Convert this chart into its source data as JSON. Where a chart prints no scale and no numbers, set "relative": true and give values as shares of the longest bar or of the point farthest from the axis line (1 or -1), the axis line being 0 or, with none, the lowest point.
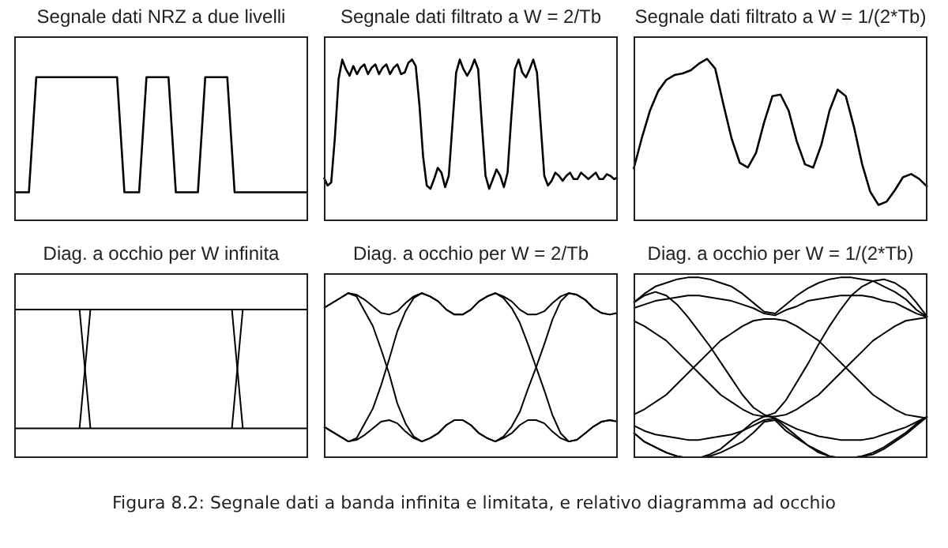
{
  "chart_data": [
    {
      "type": "line",
      "title": "Segnale dati NRZ a due livelli",
      "relative": true,
      "categories": [
        null,
        null,
        null,
        null,
        null,
        null,
        null,
        null,
        null,
        null,
        null,
        null,
        null,
        null,
        null,
        null,
        null,
        null,
        null,
        null,
        null,
        null,
        null,
        null,
        null,
        null,
        null,
        null,
        null,
        null,
        null,
        null,
        null,
        null,
        null,
        null,
        null,
        null,
        null,
        null,
        null
      ],
      "series": [
        {
          "color": "#000000",
          "values": [
            0.2,
            0.2,
            0.2,
            1,
            1,
            1,
            1,
            1,
            1,
            1,
            1,
            1,
            1,
            1,
            1,
            0.2,
            0.2,
            0.2,
            1,
            1,
            1,
            1,
            0.2,
            0.2,
            0.2,
            0.2,
            1,
            1,
            1,
            1,
            0.2,
            0.2,
            0.2,
            0.2,
            0.2,
            0.2,
            0.2,
            0.2,
            0.2,
            0.2,
            0.2
          ]
        }
      ]
    },
    {
      "type": "line",
      "title": "Segnale dati filtrato a W = 2/Tb",
      "relative": true,
      "categories": [
        null,
        null,
        null,
        null,
        null,
        null,
        null,
        null,
        null,
        null,
        null,
        null,
        null,
        null,
        null,
        null,
        null,
        null,
        null,
        null,
        null,
        null,
        null,
        null,
        null,
        null,
        null,
        null,
        null,
        null,
        null,
        null,
        null,
        null,
        null,
        null,
        null,
        null,
        null,
        null,
        null,
        null,
        null,
        null,
        null,
        null,
        null,
        null,
        null,
        null,
        null,
        null,
        null,
        null,
        null,
        null,
        null,
        null,
        null,
        null,
        null,
        null,
        null,
        null,
        null,
        null,
        null,
        null,
        null,
        null,
        null,
        null,
        null,
        null,
        null,
        null,
        null,
        null,
        null,
        null,
        null
      ],
      "series": [
        {
          "color": "#000000",
          "values": [
            0.27,
            0.22,
            0.24,
            0.52,
            0.88,
            1,
            0.94,
            0.9,
            0.96,
            0.91,
            0.95,
            0.97,
            0.91,
            0.95,
            0.97,
            0.91,
            0.95,
            0.97,
            0.91,
            0.95,
            0.97,
            0.91,
            0.92,
            0.98,
            1,
            0.96,
            0.72,
            0.4,
            0.22,
            0.2,
            0.26,
            0.33,
            0.3,
            0.21,
            0.28,
            0.6,
            0.92,
            1,
            0.94,
            0.9,
            0.94,
            1,
            0.94,
            0.6,
            0.28,
            0.2,
            0.26,
            0.32,
            0.28,
            0.21,
            0.3,
            0.64,
            0.94,
            1,
            0.92,
            0.89,
            0.94,
            1,
            0.92,
            0.6,
            0.28,
            0.22,
            0.25,
            0.3,
            0.28,
            0.25,
            0.28,
            0.3,
            0.26,
            0.26,
            0.3,
            0.28,
            0.26,
            0.28,
            0.3,
            0.26,
            0.26,
            0.29,
            0.28,
            0.26,
            0.27
          ]
        }
      ]
    },
    {
      "type": "line",
      "title": "Segnale dati filtrato a W = 1/(2*Tb)",
      "relative": true,
      "categories": [
        null,
        null,
        null,
        null,
        null,
        null,
        null,
        null,
        null,
        null,
        null,
        null,
        null,
        null,
        null,
        null,
        null,
        null,
        null,
        null,
        null,
        null,
        null,
        null,
        null,
        null,
        null,
        null,
        null,
        null,
        null,
        null,
        null,
        null,
        null,
        null,
        null
      ],
      "series": [
        {
          "color": "#000000",
          "values": [
            0.32,
            0.51,
            0.68,
            0.8,
            0.87,
            0.9,
            0.91,
            0.93,
            0.97,
            1,
            0.94,
            0.72,
            0.51,
            0.36,
            0.33,
            0.42,
            0.61,
            0.77,
            0.78,
            0.68,
            0.49,
            0.35,
            0.33,
            0.47,
            0.68,
            0.81,
            0.77,
            0.58,
            0.35,
            0.18,
            0.1,
            0.12,
            0.19,
            0.27,
            0.29,
            0.26,
            0.21
          ]
        }
      ]
    },
    {
      "type": "line",
      "title": "Diag. a occhio per W infinita",
      "relative": true,
      "categories": [
        null,
        null,
        null,
        null,
        null,
        null,
        null,
        null,
        null,
        null,
        null,
        null,
        null,
        null,
        null,
        null,
        null,
        null,
        null,
        null,
        null,
        null,
        null,
        null,
        null,
        null,
        null,
        null
      ],
      "series": [
        {
          "color": "#000000",
          "values": [
            1,
            1,
            1,
            1,
            1,
            1,
            1,
            1,
            1,
            1,
            1,
            1,
            1,
            1,
            1,
            1,
            1,
            1,
            1,
            1,
            1,
            1,
            1,
            1,
            1,
            1,
            1,
            1
          ]
        },
        {
          "color": "#000000",
          "values": [
            0.2,
            0.2,
            0.2,
            0.2,
            0.2,
            0.2,
            0.2,
            0.2,
            0.2,
            0.2,
            0.2,
            0.2,
            0.2,
            0.2,
            0.2,
            0.2,
            0.2,
            0.2,
            0.2,
            0.2,
            0.2,
            0.2,
            0.2,
            0.2,
            0.2,
            0.2,
            0.2,
            0.2
          ]
        },
        {
          "color": "#000000",
          "values": [
            null,
            null,
            null,
            null,
            null,
            null,
            0.2,
            1,
            null,
            null,
            null,
            null,
            null,
            null,
            null,
            null,
            null,
            null,
            null,
            null,
            null,
            null,
            null,
            null,
            null,
            null,
            null,
            null
          ]
        },
        {
          "color": "#000000",
          "values": [
            null,
            null,
            null,
            null,
            null,
            null,
            1,
            0.2,
            null,
            null,
            null,
            null,
            null,
            null,
            null,
            null,
            null,
            null,
            null,
            null,
            null,
            null,
            null,
            null,
            null,
            null,
            null,
            null
          ]
        },
        {
          "color": "#000000",
          "values": [
            null,
            null,
            null,
            null,
            null,
            null,
            null,
            null,
            null,
            null,
            null,
            null,
            null,
            null,
            null,
            null,
            null,
            null,
            null,
            null,
            1,
            0.2,
            null,
            null,
            null,
            null,
            null,
            null
          ]
        },
        {
          "color": "#000000",
          "values": [
            null,
            null,
            null,
            null,
            null,
            null,
            null,
            null,
            null,
            null,
            null,
            null,
            null,
            null,
            null,
            null,
            null,
            null,
            null,
            null,
            0.2,
            1,
            null,
            null,
            null,
            null,
            null,
            null
          ]
        }
      ]
    },
    {
      "type": "line",
      "title": "Diag. a occhio per W = 2/Tb",
      "relative": true,
      "categories": [
        null,
        null,
        null,
        null,
        null,
        null,
        null,
        null,
        null,
        null,
        null,
        null,
        null,
        null,
        null,
        null,
        null,
        null,
        null,
        null,
        null,
        null,
        null,
        null,
        null,
        null,
        null,
        null,
        null,
        null,
        null,
        null,
        null,
        null,
        null,
        null,
        null
      ],
      "series": [
        {
          "color": "#000000",
          "values": [
            0.91,
            0.94,
            0.97,
            1,
            0.99,
            0.96,
            0.92,
            0.88,
            0.87,
            0.89,
            0.94,
            0.98,
            1,
            0.98,
            0.95,
            0.9,
            0.87,
            0.87,
            0.9,
            0.95,
            0.98,
            1,
            0.98,
            0.95,
            0.9,
            0.87,
            0.87,
            0.89,
            0.94,
            0.98,
            1,
            0.99,
            0.96,
            0.91,
            0.88,
            0.87,
            0.88
          ]
        },
        {
          "color": "#000000",
          "values": [
            0.19,
            0.16,
            0.13,
            0.1,
            0.11,
            0.14,
            0.18,
            0.22,
            0.23,
            0.21,
            0.16,
            0.12,
            0.1,
            0.12,
            0.15,
            0.2,
            0.23,
            0.23,
            0.2,
            0.15,
            0.12,
            0.1,
            0.12,
            0.15,
            0.2,
            0.23,
            0.23,
            0.21,
            0.16,
            0.12,
            0.1,
            0.11,
            0.15,
            0.19,
            0.22,
            0.23,
            0.22
          ]
        },
        {
          "color": "#000000",
          "values": [
            0.91,
            0.94,
            0.97,
            1,
            0.98,
            0.89,
            0.8,
            0.66,
            0.51,
            0.33,
            0.21,
            0.13,
            0.1,
            0.12,
            0.15,
            0.2,
            0.23,
            0.23,
            0.2,
            0.15,
            0.12,
            0.1,
            0.13,
            0.19,
            0.28,
            0.42,
            0.55,
            0.69,
            0.84,
            0.95,
            1,
            0.99,
            0.96,
            0.91,
            0.88,
            0.87,
            0.88
          ]
        },
        {
          "color": "#000000",
          "values": [
            0.19,
            0.16,
            0.13,
            0.1,
            0.12,
            0.21,
            0.3,
            0.44,
            0.6,
            0.77,
            0.89,
            0.97,
            1,
            0.98,
            0.95,
            0.9,
            0.87,
            0.87,
            0.9,
            0.95,
            0.98,
            1,
            0.97,
            0.91,
            0.82,
            0.69,
            0.55,
            0.41,
            0.26,
            0.15,
            0.1,
            0.11,
            0.15,
            0.19,
            0.22,
            0.23,
            0.22
          ]
        }
      ]
    },
    {
      "type": "line",
      "title": "Diag. a occhio per W = 1/(2*Tb)",
      "relative": true,
      "categories": [
        null,
        null,
        null,
        null,
        null,
        null,
        null,
        null,
        null,
        null,
        null,
        null,
        null,
        null,
        null,
        null,
        null,
        null,
        null,
        null,
        null,
        null,
        null,
        null,
        null,
        null,
        null,
        null
      ],
      "annotations": [
        "Figura 8.2: Segnale dati a banda infinita e limitata, e relativo diagramma ad occhio"
      ],
      "series": [
        {
          "color": "#000000",
          "values": [
            0.86,
            0.91,
            0.95,
            0.97,
            0.99,
            1,
            1,
            0.99,
            0.97,
            0.95,
            0.91,
            0.86,
            0.81,
            0.8,
            0.85,
            0.9,
            0.94,
            0.97,
            0.99,
            1,
            1,
            0.99,
            0.98,
            0.95,
            0.92,
            0.88,
            0.82,
            0.78
          ]
        },
        {
          "color": "#000000",
          "values": [
            0.83,
            0.85,
            0.87,
            0.88,
            0.89,
            0.9,
            0.9,
            0.89,
            0.88,
            0.87,
            0.85,
            0.83,
            0.8,
            0.79,
            0.82,
            0.84,
            0.87,
            0.88,
            0.89,
            0.9,
            0.9,
            0.9,
            0.89,
            0.87,
            0.86,
            0.83,
            0.8,
            0.78
          ]
        },
        {
          "color": "#000000",
          "values": [
            0.76,
            0.73,
            0.69,
            0.65,
            0.59,
            0.53,
            0.47,
            0.41,
            0.35,
            0.31,
            0.27,
            0.24,
            0.23,
            0.23,
            0.24,
            0.27,
            0.31,
            0.35,
            0.41,
            0.47,
            0.53,
            0.59,
            0.65,
            0.69,
            0.73,
            0.76,
            0.77,
            0.78
          ]
        },
        {
          "color": "#000000",
          "values": [
            0.24,
            0.27,
            0.31,
            0.35,
            0.41,
            0.47,
            0.53,
            0.59,
            0.65,
            0.69,
            0.73,
            0.76,
            0.77,
            0.77,
            0.76,
            0.73,
            0.69,
            0.65,
            0.59,
            0.53,
            0.47,
            0.41,
            0.35,
            0.31,
            0.27,
            0.24,
            0.23,
            0.22
          ]
        },
        {
          "color": "#000000",
          "values": [
            0.14,
            0.09,
            0.06,
            0.03,
            0.01,
            0,
            0,
            0.01,
            0.03,
            0.06,
            0.09,
            0.14,
            0.2,
            0.21,
            0.15,
            0.11,
            0.07,
            0.04,
            0.01,
            0,
            0,
            0.01,
            0.02,
            0.05,
            0.09,
            0.13,
            0.18,
            0.23
          ]
        },
        {
          "color": "#000000",
          "values": [
            0.18,
            0.15,
            0.13,
            0.12,
            0.11,
            0.1,
            0.1,
            0.11,
            0.12,
            0.13,
            0.15,
            0.18,
            0.21,
            0.22,
            0.19,
            0.16,
            0.14,
            0.12,
            0.11,
            0.1,
            0.1,
            0.1,
            0.11,
            0.13,
            0.15,
            0.17,
            0.2,
            0.23
          ]
        },
        {
          "color": "#000000",
          "values": [
            0.86,
            0.9,
            0.92,
            0.9,
            0.85,
            0.78,
            0.7,
            0.62,
            0.53,
            0.44,
            0.35,
            0.28,
            0.24,
            0.22,
            0.17,
            0.12,
            0.07,
            0.03,
            0.01,
            0,
            0,
            0.01,
            0.03,
            0.06,
            0.1,
            0.14,
            0.19,
            0.23
          ]
        },
        {
          "color": "#000000",
          "values": [
            0.14,
            0.09,
            0.06,
            0.03,
            0.01,
            0,
            0,
            0.02,
            0.05,
            0.1,
            0.15,
            0.2,
            0.23,
            0.25,
            0.32,
            0.42,
            0.52,
            0.63,
            0.73,
            0.82,
            0.9,
            0.95,
            0.98,
            0.99,
            0.97,
            0.93,
            0.86,
            0.78
          ]
        }
      ]
    }
  ]
}
